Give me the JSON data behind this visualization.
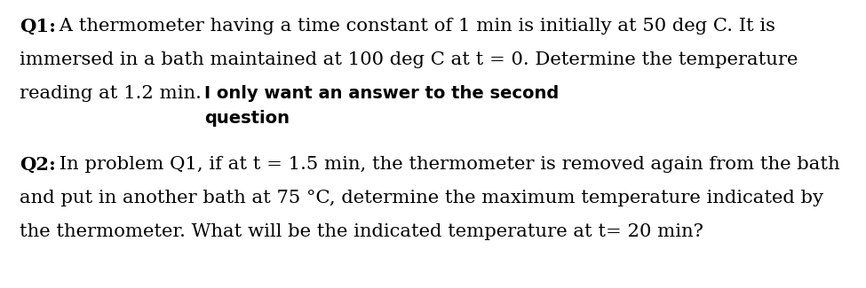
{
  "background_color": "#ffffff",
  "q1_bold": "Q1:",
  "q1_line1": " A thermometer having a time constant of 1 min is initially at 50 deg C. It is",
  "q1_line2": "immersed in a bath maintained at 100 deg C at t = 0. Determine the temperature",
  "q1_line3": "reading at 1.2 min.",
  "annotation_line1": "I only want an answer to the second",
  "annotation_line2": "question",
  "q2_bold": "Q2:",
  "q2_line1": " In problem Q1, if at t = 1.5 min, the thermometer is removed again from the bath",
  "q2_line2": "and put in another bath at 75 °C, determine the maximum temperature indicated by",
  "q2_line3": "the thermometer. What will be the indicated temperature at t= 20 min?",
  "main_fontsize": 15.2,
  "annotation_fontsize": 14.0,
  "main_font": "DejaVu Serif",
  "annotation_font": "DejaVu Sans",
  "fig_width": 9.75,
  "fig_height": 3.25,
  "dpi": 100
}
